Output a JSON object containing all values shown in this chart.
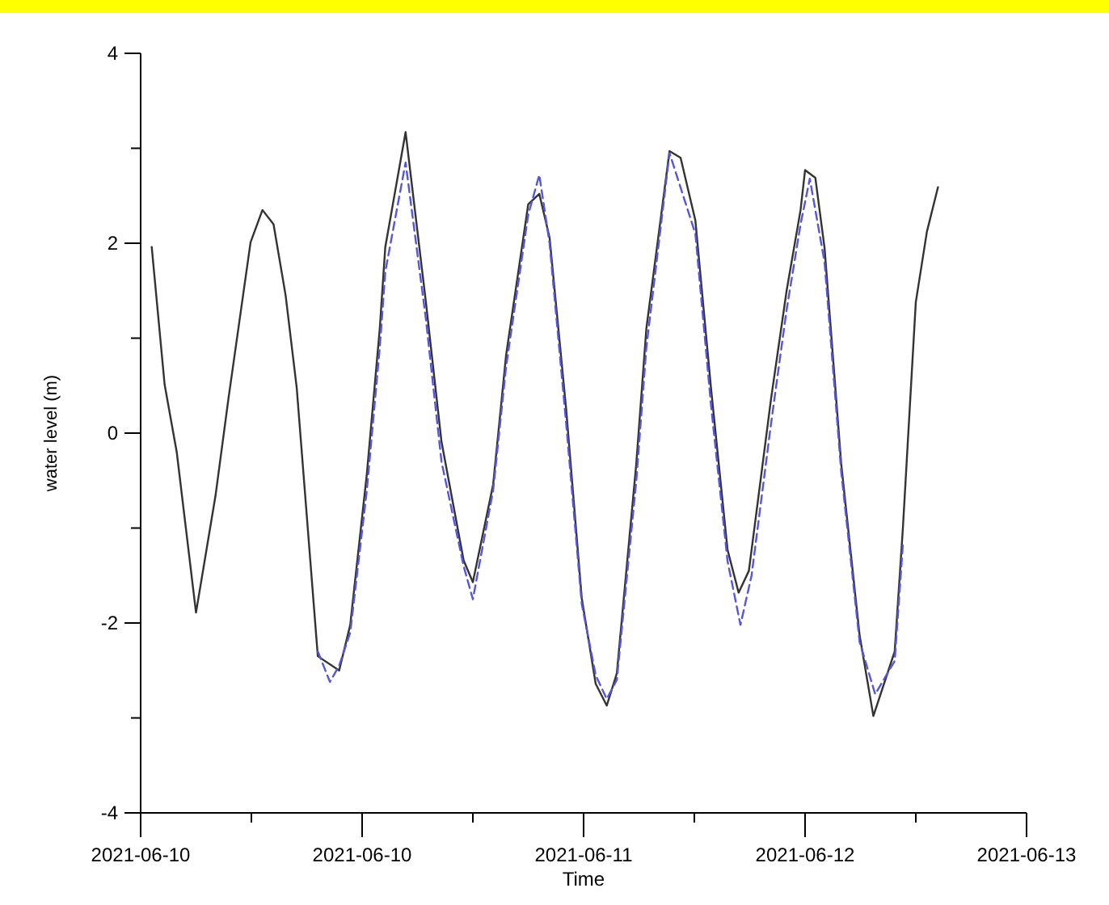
{
  "chart_data": {
    "type": "line",
    "xlabel": "Time",
    "ylabel": "water level (m)",
    "xlim": [
      "2021-06-10T00:00",
      "2021-06-13T00:00"
    ],
    "ylim": [
      -4,
      4
    ],
    "xticks": [
      {
        "value": "2021-06-10T00:00",
        "label": "2021-06-10"
      },
      {
        "value": "2021-06-10T09:00",
        "label": null
      },
      {
        "value": "2021-06-10T18:00",
        "label": "2021-06-10"
      },
      {
        "value": "2021-06-11T03:00",
        "label": null
      },
      {
        "value": "2021-06-11T12:00",
        "label": "2021-06-11"
      },
      {
        "value": "2021-06-11T21:00",
        "label": null
      },
      {
        "value": "2021-06-12T06:00",
        "label": "2021-06-12"
      },
      {
        "value": "2021-06-12T15:00",
        "label": null
      },
      {
        "value": "2021-06-13T00:00",
        "label": "2021-06-13"
      }
    ],
    "yticks": [
      -4,
      {
        "value": -3,
        "label": null
      },
      -2,
      {
        "value": -1,
        "label": null
      },
      0,
      {
        "value": 1,
        "label": null
      },
      2,
      {
        "value": 3,
        "label": null
      },
      4
    ],
    "grid": false,
    "marker": "none",
    "series": [
      {
        "color": "#333333",
        "line_style": "solid",
        "x": [
          "2021-06-10T00:54",
          "2021-06-10T01:57",
          "2021-06-10T02:56",
          "2021-06-10T04:30",
          "2021-06-10T06:05",
          "2021-06-10T07:08",
          "2021-06-10T08:56",
          "2021-06-10T09:54",
          "2021-06-10T10:48",
          "2021-06-10T11:47",
          "2021-06-10T12:41",
          "2021-06-10T14:24",
          "2021-06-10T16:08",
          "2021-06-10T17:02",
          "2021-06-10T18:23",
          "2021-06-10T19:26",
          "2021-06-10T19:53",
          "2021-06-10T21:32",
          "2021-06-10T23:11",
          "2021-06-11T00:27",
          "2021-06-11T02:15",
          "2021-06-11T03:00",
          "2021-06-11T04:39",
          "2021-06-11T05:42",
          "2021-06-11T07:30",
          "2021-06-11T08:24",
          "2021-06-11T09:14",
          "2021-06-11T10:35",
          "2021-06-11T11:51",
          "2021-06-11T12:59",
          "2021-06-11T13:53",
          "2021-06-11T14:42",
          "2021-06-11T16:17",
          "2021-06-11T17:06",
          "2021-06-11T18:59",
          "2021-06-11T19:53",
          "2021-06-11T21:05",
          "2021-06-11T22:21",
          "2021-06-11T23:42",
          "2021-06-12T00:36",
          "2021-06-12T01:26",
          "2021-06-12T03:14",
          "2021-06-12T04:30",
          "2021-06-12T05:38",
          "2021-06-12T06:00",
          "2021-06-12T06:50",
          "2021-06-12T07:35",
          "2021-06-12T08:56",
          "2021-06-12T10:26",
          "2021-06-12T11:33",
          "2021-06-12T13:17",
          "2021-06-12T13:57",
          "2021-06-12T15:00",
          "2021-06-12T15:54",
          "2021-06-12T16:48"
        ],
        "values": [
          1.96,
          0.51,
          -0.2,
          -1.89,
          -0.66,
          0.36,
          2.01,
          2.35,
          2.2,
          1.45,
          0.48,
          -2.35,
          -2.5,
          -2.02,
          -0.43,
          1.1,
          1.96,
          3.17,
          1.38,
          -0.09,
          -1.34,
          -1.57,
          -0.54,
          0.82,
          2.41,
          2.52,
          2.06,
          0.25,
          -1.74,
          -2.64,
          -2.87,
          -2.53,
          -0.32,
          1.1,
          2.97,
          2.9,
          2.24,
          0.48,
          -1.23,
          -1.68,
          -1.45,
          0.36,
          1.5,
          2.35,
          2.77,
          2.69,
          1.95,
          -0.32,
          -2.13,
          -2.98,
          -2.3,
          -1.0,
          1.38,
          2.12,
          2.59
        ]
      },
      {
        "color": "#5555dd",
        "line_style": "dashed",
        "x": [
          "2021-06-10T14:24",
          "2021-06-10T15:23",
          "2021-06-10T16:08",
          "2021-06-10T17:02",
          "2021-06-10T18:23",
          "2021-06-10T19:26",
          "2021-06-10T19:53",
          "2021-06-10T21:32",
          "2021-06-10T23:11",
          "2021-06-11T00:27",
          "2021-06-11T02:15",
          "2021-06-11T03:00",
          "2021-06-11T04:39",
          "2021-06-11T05:42",
          "2021-06-11T07:30",
          "2021-06-11T08:24",
          "2021-06-11T09:14",
          "2021-06-11T10:35",
          "2021-06-11T11:51",
          "2021-06-11T12:59",
          "2021-06-11T13:53",
          "2021-06-11T14:42",
          "2021-06-11T16:17",
          "2021-06-11T17:06",
          "2021-06-11T18:59",
          "2021-06-11T21:05",
          "2021-06-11T22:21",
          "2021-06-11T23:42",
          "2021-06-12T00:45",
          "2021-06-12T01:39",
          "2021-06-12T03:14",
          "2021-06-12T04:30",
          "2021-06-12T05:38",
          "2021-06-12T06:23",
          "2021-06-12T07:35",
          "2021-06-12T08:56",
          "2021-06-12T10:26",
          "2021-06-12T11:42",
          "2021-06-12T13:17",
          "2021-06-12T13:57"
        ],
        "values": [
          -2.3,
          -2.62,
          -2.45,
          -2.1,
          -0.6,
          0.9,
          1.7,
          2.85,
          1.2,
          -0.3,
          -1.4,
          -1.75,
          -0.6,
          0.7,
          2.3,
          2.72,
          2.0,
          0.1,
          -1.8,
          -2.55,
          -2.8,
          -2.6,
          -0.5,
          0.9,
          2.95,
          2.1,
          0.3,
          -1.35,
          -2.02,
          -1.5,
          0.1,
          1.3,
          2.2,
          2.68,
          1.8,
          -0.4,
          -2.2,
          -2.75,
          -2.4,
          -1.17
        ]
      }
    ]
  }
}
